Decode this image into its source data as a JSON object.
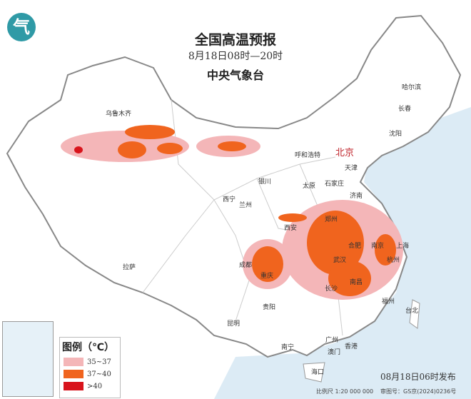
{
  "header": {
    "title": "全国高温预报",
    "time_range": "8月18日08时—20时",
    "issuer": "中央气象台"
  },
  "logo": {
    "icon": "cma-logo",
    "text": "气"
  },
  "legend": {
    "title": "图例（℃）",
    "items": [
      {
        "label": "35~37",
        "color": "#f4b6b8"
      },
      {
        "label": "37~40",
        "color": "#f0641e"
      },
      {
        "label": ">40",
        "color": "#d8141c"
      }
    ]
  },
  "cities": [
    {
      "name": "乌鲁木齐"
    },
    {
      "name": "哈尔滨"
    },
    {
      "name": "长春"
    },
    {
      "name": "沈阳"
    },
    {
      "name": "北京",
      "capital": true
    },
    {
      "name": "天津"
    },
    {
      "name": "呼和浩特"
    },
    {
      "name": "太原"
    },
    {
      "name": "石家庄"
    },
    {
      "name": "济南"
    },
    {
      "name": "银川"
    },
    {
      "name": "西宁"
    },
    {
      "name": "兰州"
    },
    {
      "name": "西安"
    },
    {
      "name": "郑州"
    },
    {
      "name": "拉萨"
    },
    {
      "name": "成都"
    },
    {
      "name": "重庆"
    },
    {
      "name": "合肥"
    },
    {
      "name": "南京"
    },
    {
      "name": "上海"
    },
    {
      "name": "杭州"
    },
    {
      "name": "武汉"
    },
    {
      "name": "长沙"
    },
    {
      "name": "南昌"
    },
    {
      "name": "福州"
    },
    {
      "name": "台北"
    },
    {
      "name": "贵阳"
    },
    {
      "name": "昆明"
    },
    {
      "name": "南宁"
    },
    {
      "name": "广州"
    },
    {
      "name": "香港"
    },
    {
      "name": "澳门"
    },
    {
      "name": "海口"
    }
  ],
  "footer": {
    "issued": "08月18日06时发布",
    "scale": "比例尺 1:20 000 000",
    "map_number": "审图号：GS京(2024)0236号"
  },
  "colors": {
    "sea": "#dcebf5",
    "land": "#ffffff",
    "border": "#888888"
  }
}
